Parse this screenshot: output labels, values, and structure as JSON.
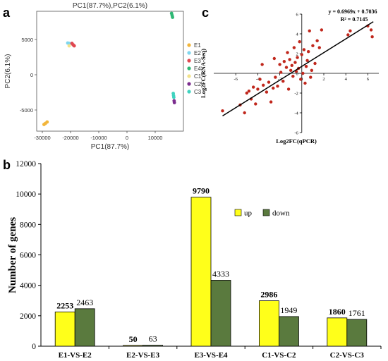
{
  "panels": {
    "a": "a",
    "b": "b",
    "c": "c"
  },
  "chart_data": [
    {
      "panel": "a",
      "type": "scatter",
      "title": "PC1(87.7%),PC2(6.1%)",
      "xlabel": "PC1(87.7%)",
      "ylabel": "PC2(6.1%)",
      "xlim": [
        -32000,
        20000
      ],
      "ylim": [
        -8000,
        9000
      ],
      "xticks": [
        -30000,
        -20000,
        -10000,
        0,
        10000
      ],
      "yticks": [
        -5000,
        0,
        5000
      ],
      "grid": false,
      "legend_position": "right",
      "series": [
        {
          "name": "E1",
          "color": "#f2b53a",
          "points": [
            [
              -29400,
              -7050
            ],
            [
              -28900,
              -6900
            ],
            [
              -28300,
              -6700
            ]
          ]
        },
        {
          "name": "E2",
          "color": "#7fd6ee",
          "points": [
            [
              -21000,
              4500
            ],
            [
              -20500,
              4450
            ]
          ]
        },
        {
          "name": "E3",
          "color": "#e0474f",
          "points": [
            [
              -19500,
              4450
            ],
            [
              -19100,
              4250
            ],
            [
              -18700,
              4100
            ]
          ]
        },
        {
          "name": "E4",
          "color": "#2fb774",
          "points": [
            [
              15800,
              8700
            ],
            [
              16000,
              8400
            ],
            [
              16150,
              8150
            ]
          ]
        },
        {
          "name": "C1",
          "color": "#f2e28a",
          "points": [
            [
              -20500,
              4100
            ]
          ]
        },
        {
          "name": "C2",
          "color": "#7b2d8e",
          "points": [
            [
              16700,
              -3700
            ],
            [
              16800,
              -3950
            ]
          ]
        },
        {
          "name": "C3",
          "color": "#3fd3bf",
          "points": [
            [
              16400,
              -2650
            ],
            [
              16500,
              -2950
            ],
            [
              16600,
              -3200
            ]
          ]
        }
      ]
    },
    {
      "panel": "b",
      "type": "bar",
      "categories": [
        "E1-VS-E2",
        "E2-VS-E3",
        "E3-VS-E4",
        "C1-VS-C2",
        "C2-VS-C3"
      ],
      "series": [
        {
          "name": "up",
          "color": "#ffff1a",
          "values": [
            2253,
            50,
            9790,
            2986,
            1860
          ],
          "labels": [
            "2253",
            "50",
            "9790",
            "2986",
            "1860"
          ]
        },
        {
          "name": "down",
          "color": "#5a7a3e",
          "values": [
            2463,
            63,
            4333,
            1949,
            1761
          ],
          "labels": [
            "2463",
            "63",
            "4333",
            "1949",
            "1761"
          ]
        }
      ],
      "xlabel": "",
      "ylabel": "Number of genes",
      "ylim": [
        0,
        12000
      ],
      "yticks": [
        0,
        2000,
        4000,
        6000,
        8000,
        10000,
        12000
      ],
      "grid": false,
      "legend_position": "top-right"
    },
    {
      "panel": "c",
      "type": "scatter",
      "xlabel": "Log2FC(qPCR)",
      "ylabel": "Log2FC(RNA-Seq)",
      "xlim": [
        -8,
        7
      ],
      "ylim": [
        -6,
        6
      ],
      "xticks": [
        -6,
        -4,
        -2,
        0,
        2,
        4,
        6
      ],
      "yticks": [
        -6,
        -4,
        -2,
        0,
        2,
        4,
        6
      ],
      "grid": false,
      "equation": "y = 0.6969x + 0.7036",
      "r2": "R² = 0.7145",
      "trendline": {
        "slope": 0.6969,
        "intercept": 0.7036,
        "x_from": -7.2,
        "x_to": 6.5
      },
      "marker_color": "#c0271c",
      "points": [
        [
          -7.2,
          -3.8
        ],
        [
          -5.6,
          -3.2
        ],
        [
          -5.2,
          -4.0
        ],
        [
          -5.0,
          -2.0
        ],
        [
          -4.8,
          -1.8
        ],
        [
          -4.6,
          -2.6
        ],
        [
          -4.4,
          -1.4
        ],
        [
          -4.2,
          -3.1
        ],
        [
          -4.0,
          -1.6
        ],
        [
          -3.8,
          -0.6
        ],
        [
          -3.5,
          -1.2
        ],
        [
          -3.2,
          -1.9
        ],
        [
          -3.0,
          -0.9
        ],
        [
          -2.8,
          -2.9
        ],
        [
          -2.6,
          -1.5
        ],
        [
          -2.4,
          -0.4
        ],
        [
          -2.2,
          -1.3
        ],
        [
          -2.0,
          0.9
        ],
        [
          -1.9,
          0.1
        ],
        [
          -1.7,
          -0.8
        ],
        [
          -1.6,
          1.2
        ],
        [
          -1.4,
          0.6
        ],
        [
          -1.3,
          2.1
        ],
        [
          -1.2,
          -1.6
        ],
        [
          -1.1,
          1.4
        ],
        [
          -1.0,
          0.3
        ],
        [
          -0.9,
          0.8
        ],
        [
          -0.8,
          -0.3
        ],
        [
          -0.7,
          2.6
        ],
        [
          -0.6,
          1.1
        ],
        [
          -0.5,
          0.2
        ],
        [
          -0.4,
          1.6
        ],
        [
          -0.3,
          0.5
        ],
        [
          -0.2,
          3.2
        ],
        [
          -0.1,
          -0.6
        ],
        [
          0.0,
          1.9
        ],
        [
          0.1,
          0.0
        ],
        [
          0.2,
          2.4
        ],
        [
          0.3,
          -1.0
        ],
        [
          0.4,
          0.7
        ],
        [
          0.5,
          1.3
        ],
        [
          0.6,
          2.2
        ],
        [
          0.7,
          4.3
        ],
        [
          0.8,
          -0.4
        ],
        [
          0.9,
          0.3
        ],
        [
          1.0,
          2.8
        ],
        [
          1.2,
          1.0
        ],
        [
          1.4,
          3.3
        ],
        [
          1.6,
          2.6
        ],
        [
          1.8,
          4.4
        ],
        [
          -2.5,
          1.5
        ],
        [
          -3.6,
          0.9
        ],
        [
          4.2,
          3.9
        ],
        [
          4.4,
          4.3
        ],
        [
          6.0,
          4.8
        ],
        [
          6.3,
          4.4
        ],
        [
          6.4,
          3.7
        ]
      ]
    }
  ]
}
